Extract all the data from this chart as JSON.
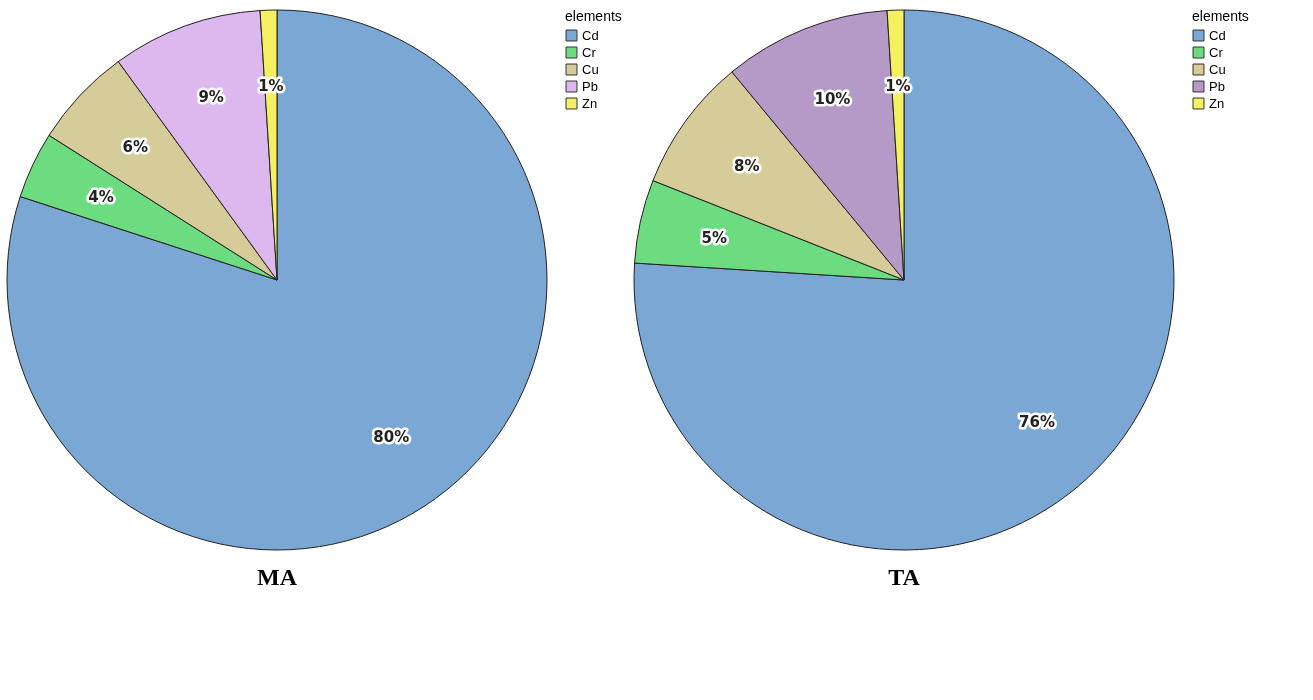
{
  "chart_data": [
    {
      "type": "pie",
      "title": "MA",
      "categories": [
        "Cd",
        "Cr",
        "Cu",
        "Pb",
        "Zn"
      ],
      "values": [
        80,
        4,
        6,
        9,
        1
      ],
      "colors": [
        "#7ba7d4",
        "#6ddb7f",
        "#d5cc99",
        "#dcb8ee",
        "#f5f060"
      ],
      "value_labels": [
        "80%",
        "4%",
        "6%",
        "9%",
        "1%"
      ],
      "legend_title": "elements",
      "legend": "top right"
    },
    {
      "type": "pie",
      "title": "TA",
      "categories": [
        "Cd",
        "Cr",
        "Cu",
        "Pb",
        "Zn"
      ],
      "values": [
        76,
        5,
        8,
        10,
        1
      ],
      "colors": [
        "#7ba7d4",
        "#6ddb7f",
        "#d5cc99",
        "#b59ac8",
        "#f5f060"
      ],
      "value_labels": [
        "76%",
        "5%",
        "8%",
        "10%",
        "1%"
      ],
      "legend_title": "elements",
      "legend": "top right"
    }
  ]
}
